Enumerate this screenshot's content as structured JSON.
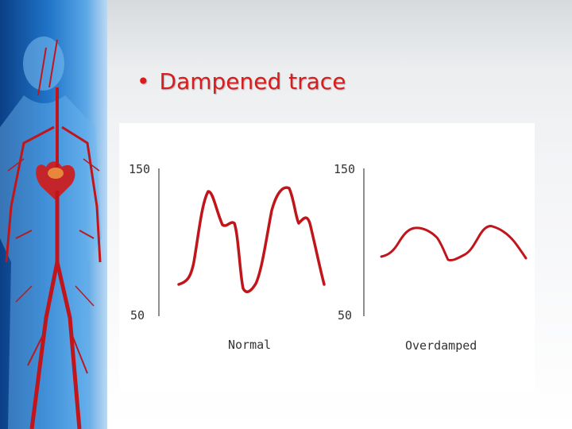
{
  "slide": {
    "bullet": "•",
    "title": "Dampened trace"
  },
  "figure": {
    "panels": [
      {
        "caption": "Normal",
        "y_top_label": "150",
        "y_bottom_label": "50",
        "trace_color": "#c0161b"
      },
      {
        "caption": "Overdamped",
        "y_top_label": "150",
        "y_bottom_label": "50",
        "trace_color": "#c0161b"
      }
    ]
  },
  "colors": {
    "title": "#d71d1d",
    "trace": "#c0161b",
    "panel_blue": "#1f74c8"
  },
  "decor": {
    "left_image": "human-circulatory-system-illustration"
  }
}
